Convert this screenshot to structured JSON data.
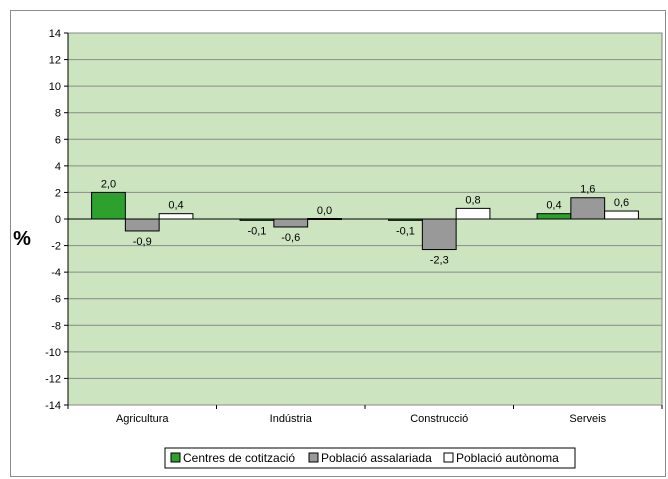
{
  "chart_data": {
    "type": "bar",
    "categories": [
      "Agricultura",
      "Indústria",
      "Construcció",
      "Serveis"
    ],
    "series": [
      {
        "name": "Centres de cotització",
        "values": [
          2.0,
          -0.1,
          -0.1,
          0.4
        ],
        "labels": [
          "2,0",
          "-0,1",
          "-0,1",
          "0,4"
        ],
        "color": "#2ea02e"
      },
      {
        "name": "Població assalariada",
        "values": [
          -0.9,
          -0.6,
          -2.3,
          1.6
        ],
        "labels": [
          "-0,9",
          "-0,6",
          "-2,3",
          "1,6"
        ],
        "color": "#999999"
      },
      {
        "name": "Població autònoma",
        "values": [
          0.4,
          0.0,
          0.8,
          0.6
        ],
        "labels": [
          "0,4",
          "0,0",
          "0,8",
          "0,6"
        ],
        "color": "#ffffff"
      }
    ],
    "ylabel": "%",
    "ylim": [
      -14,
      14
    ],
    "yticks": [
      14,
      12,
      10,
      8,
      6,
      4,
      2,
      0,
      -2,
      -4,
      -6,
      -8,
      -10,
      -12,
      -14
    ],
    "grid": true,
    "plot_background": "#cce5c0",
    "legend_position": "bottom"
  }
}
